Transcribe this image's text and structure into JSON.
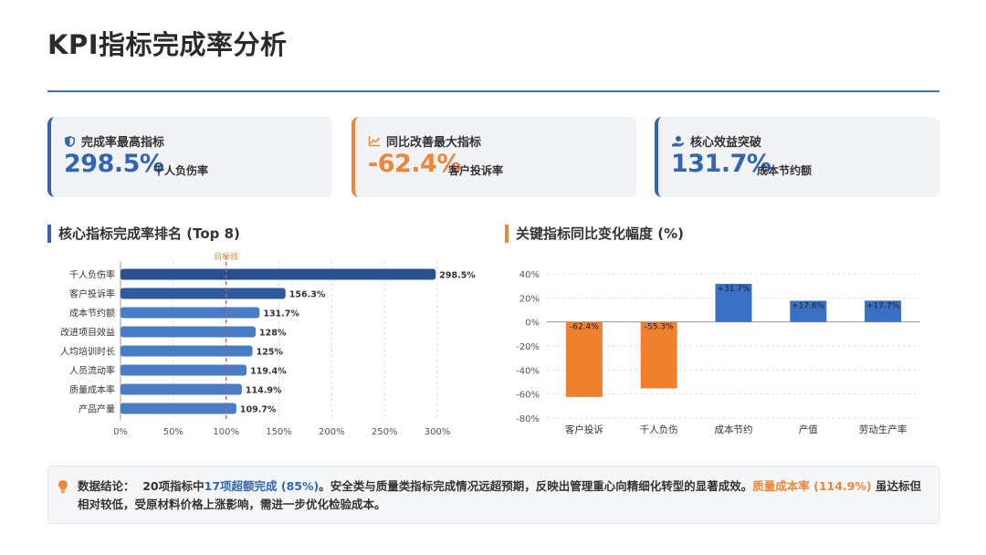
{
  "page": {
    "title": "KPI指标完成率分析"
  },
  "kpi_cards": [
    {
      "icon": "shield-icon",
      "label": "完成率最高指标",
      "value": "298.5%",
      "sub": "千人负伤率",
      "accent": "#3465b0"
    },
    {
      "icon": "line-chart-icon",
      "label": "同比改善最大指标",
      "value": "-62.4%",
      "sub": "客户投诉率",
      "accent": "#e9873a"
    },
    {
      "icon": "hand-coin-icon",
      "label": "核心效益突破",
      "value": "131.7%",
      "sub": "成本节约额",
      "accent": "#3465b0"
    }
  ],
  "sections": {
    "left_title": "核心指标完成率排名 (Top 8)",
    "right_title": "关键指标同比变化幅度 (%)"
  },
  "chart_data": [
    {
      "type": "bar",
      "orientation": "horizontal",
      "title": "核心指标完成率排名 (Top 8)",
      "categories": [
        "千人负伤率",
        "客户投诉率",
        "成本节约额",
        "改进项目效益",
        "人均培训时长",
        "人员流动率",
        "质量成本率",
        "产品产量"
      ],
      "values": [
        298.5,
        156.3,
        131.7,
        128,
        125,
        119.4,
        114.9,
        109.7
      ],
      "value_labels": [
        "298.5%",
        "156.3%",
        "131.7%",
        "128%",
        "125%",
        "119.4%",
        "114.9%",
        "109.7%"
      ],
      "xlim": [
        0,
        300
      ],
      "xticks": [
        "0%",
        "50%",
        "100%",
        "150%",
        "200%",
        "250%",
        "300%"
      ],
      "reference_line": {
        "value": 100,
        "label": "目标线"
      },
      "grid": true,
      "colors": [
        "#2b4f8c",
        "#2f5a9e",
        "#4a7cc6"
      ]
    },
    {
      "type": "bar",
      "title": "关键指标同比变化幅度 (%)",
      "categories": [
        "客户投诉",
        "千人负伤",
        "成本节约",
        "产值",
        "劳动生产率"
      ],
      "values": [
        -62.4,
        -55.3,
        31.7,
        17.6,
        17.7
      ],
      "value_labels": [
        "-62.4%",
        "-55.3%",
        "+31.7%",
        "+17.6%",
        "+17.7%"
      ],
      "ylim": [
        -80,
        40
      ],
      "yticks": [
        "40%",
        "20%",
        "0%",
        "-20%",
        "-40%",
        "-60%",
        "-80%"
      ],
      "grid": true,
      "colors": {
        "negative": "#ef8030",
        "positive": "#3a70c4"
      }
    }
  ],
  "conclusion": {
    "icon": "lightbulb-icon",
    "label": "数据结论：",
    "text1": "20项指标中",
    "highlight1": "17项超额完成 (85%)",
    "text2": "。安全类与质量类指标完成情况远超预期，反映出管理重心向精细化转型的显著成效。",
    "highlight2": "质量成本率 (114.9%)",
    "text3": " 虽达标但相对较低，受原材料价格上涨影响，需进一步优化检验成本。"
  }
}
